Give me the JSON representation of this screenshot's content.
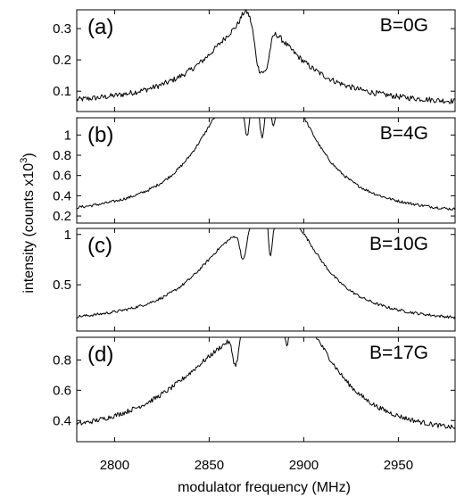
{
  "chart_data": {
    "type": "line",
    "xlabel": "modulator frequency (MHz)",
    "ylabel": "intensity (counts x10",
    "ylabel_superscript": "3",
    "ylabel_close": ")",
    "xlim": [
      2780,
      2980
    ],
    "xticks": [
      2800,
      2850,
      2900,
      2950
    ],
    "xticklabels": [
      "2800",
      "2850",
      "2900",
      "2950"
    ],
    "panels": [
      {
        "label": "(a)",
        "field": "B=0G",
        "ylim": [
          0.035,
          0.36
        ],
        "yticks": [
          0.1,
          0.2,
          0.3
        ],
        "yticklabels": [
          "0.1",
          "0.2",
          "0.3"
        ],
        "baseline": 0.05,
        "noise": 0.009,
        "lobes": [
          {
            "center": 2873,
            "amplitude": 0.28,
            "width": 28,
            "tail": "lorentz"
          }
        ],
        "dips": [
          {
            "center": 2876,
            "depth": 0.135,
            "width": 2.8
          },
          {
            "center": 2880,
            "depth": 0.13,
            "width": 2.8
          }
        ],
        "bumps": [
          {
            "center": 2869,
            "amplitude": 0.03,
            "width": 3
          }
        ]
      },
      {
        "label": "(b)",
        "field": "B=4G",
        "ylim": [
          0.13,
          1.17
        ],
        "yticks": [
          0.2,
          0.4,
          0.6,
          0.8,
          1.0
        ],
        "yticklabels": [
          "0.2",
          "0.4",
          "0.6",
          "0.8",
          "1"
        ],
        "baseline": 0.18,
        "noise": 0.014,
        "lobes": [
          {
            "center": 2862,
            "amplitude": 0.85,
            "width": 24,
            "tail": "lorentz"
          },
          {
            "center": 2889,
            "amplitude": 0.95,
            "width": 22,
            "tail": "lorentz"
          }
        ],
        "dips": [
          {
            "center": 2870,
            "depth": 0.5,
            "width": 2.3
          },
          {
            "center": 2878,
            "depth": 0.55,
            "width": 2.3
          },
          {
            "center": 2884,
            "depth": 0.45,
            "width": 2.3
          }
        ],
        "bumps": [
          {
            "center": 2874,
            "amplitude": 0.1,
            "width": 2
          }
        ]
      },
      {
        "label": "(c)",
        "field": "B=10G",
        "ylim": [
          0.04,
          1.06
        ],
        "yticks": [
          0.5,
          1.0
        ],
        "yticklabels": [
          "0.5",
          "1"
        ],
        "baseline": 0.1,
        "noise": 0.014,
        "lobes": [
          {
            "center": 2862,
            "amplitude": 0.58,
            "width": 26,
            "tail": "lorentz"
          },
          {
            "center": 2892,
            "amplitude": 0.82,
            "width": 22,
            "tail": "lorentz"
          }
        ],
        "dips": [
          {
            "center": 2868,
            "depth": 0.28,
            "width": 2.2
          },
          {
            "center": 2882,
            "depth": 0.5,
            "width": 1.8
          }
        ],
        "bumps": [
          {
            "center": 2876,
            "amplitude": 0.3,
            "width": 3
          },
          {
            "center": 2880,
            "amplitude": 0.35,
            "width": 2.2
          }
        ]
      },
      {
        "label": "(d)",
        "field": "B=17G",
        "ylim": [
          0.26,
          0.95
        ],
        "yticks": [
          0.4,
          0.6,
          0.8
        ],
        "yticklabels": [
          "0.4",
          "0.6",
          "0.8"
        ],
        "baseline": 0.27,
        "noise": 0.016,
        "lobes": [
          {
            "center": 2858,
            "amplitude": 0.4,
            "width": 38,
            "tail": "lorentz"
          },
          {
            "center": 2888,
            "amplitude": 0.57,
            "width": 22,
            "tail": "lorentz"
          },
          {
            "center": 2905,
            "amplitude": 0.2,
            "width": 22,
            "tail": "lorentz"
          }
        ],
        "dips": [
          {
            "center": 2864,
            "depth": 0.2,
            "width": 2.2
          },
          {
            "center": 2891,
            "depth": 0.3,
            "width": 1.8
          }
        ],
        "bumps": [
          {
            "center": 2884,
            "amplitude": 0.08,
            "width": 2
          }
        ]
      }
    ]
  }
}
